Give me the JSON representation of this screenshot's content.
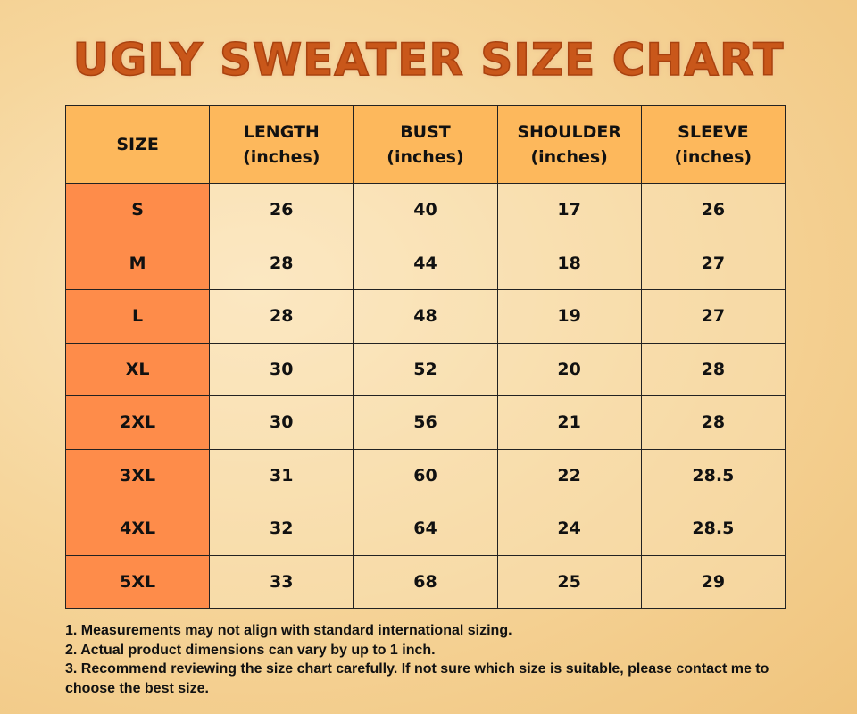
{
  "title": "UGLY SWEATER SIZE CHART",
  "colors": {
    "title": "#c9571a",
    "header_bg": "#fdb85c",
    "size_col_bg": "#fe8c4a"
  },
  "chart_data": {
    "type": "table",
    "columns": [
      {
        "name": "SIZE",
        "unit": ""
      },
      {
        "name": "LENGTH",
        "unit": "(inches)"
      },
      {
        "name": "BUST",
        "unit": "(inches)"
      },
      {
        "name": "SHOULDER",
        "unit": "(inches)"
      },
      {
        "name": "SLEEVE",
        "unit": "(inches)"
      }
    ],
    "rows": [
      [
        "S",
        "26",
        "40",
        "17",
        "26"
      ],
      [
        "M",
        "28",
        "44",
        "18",
        "27"
      ],
      [
        "L",
        "28",
        "48",
        "19",
        "27"
      ],
      [
        "XL",
        "30",
        "52",
        "20",
        "28"
      ],
      [
        "2XL",
        "30",
        "56",
        "21",
        "28"
      ],
      [
        "3XL",
        "31",
        "60",
        "22",
        "28.5"
      ],
      [
        "4XL",
        "32",
        "64",
        "24",
        "28.5"
      ],
      [
        "5XL",
        "33",
        "68",
        "25",
        "29"
      ]
    ]
  },
  "notes": [
    "1. Measurements may not align with standard international sizing.",
    "2. Actual product dimensions can vary by up to 1 inch.",
    "3. Recommend reviewing the size chart carefully. If not sure which size is suitable, please contact me to choose the best size."
  ]
}
